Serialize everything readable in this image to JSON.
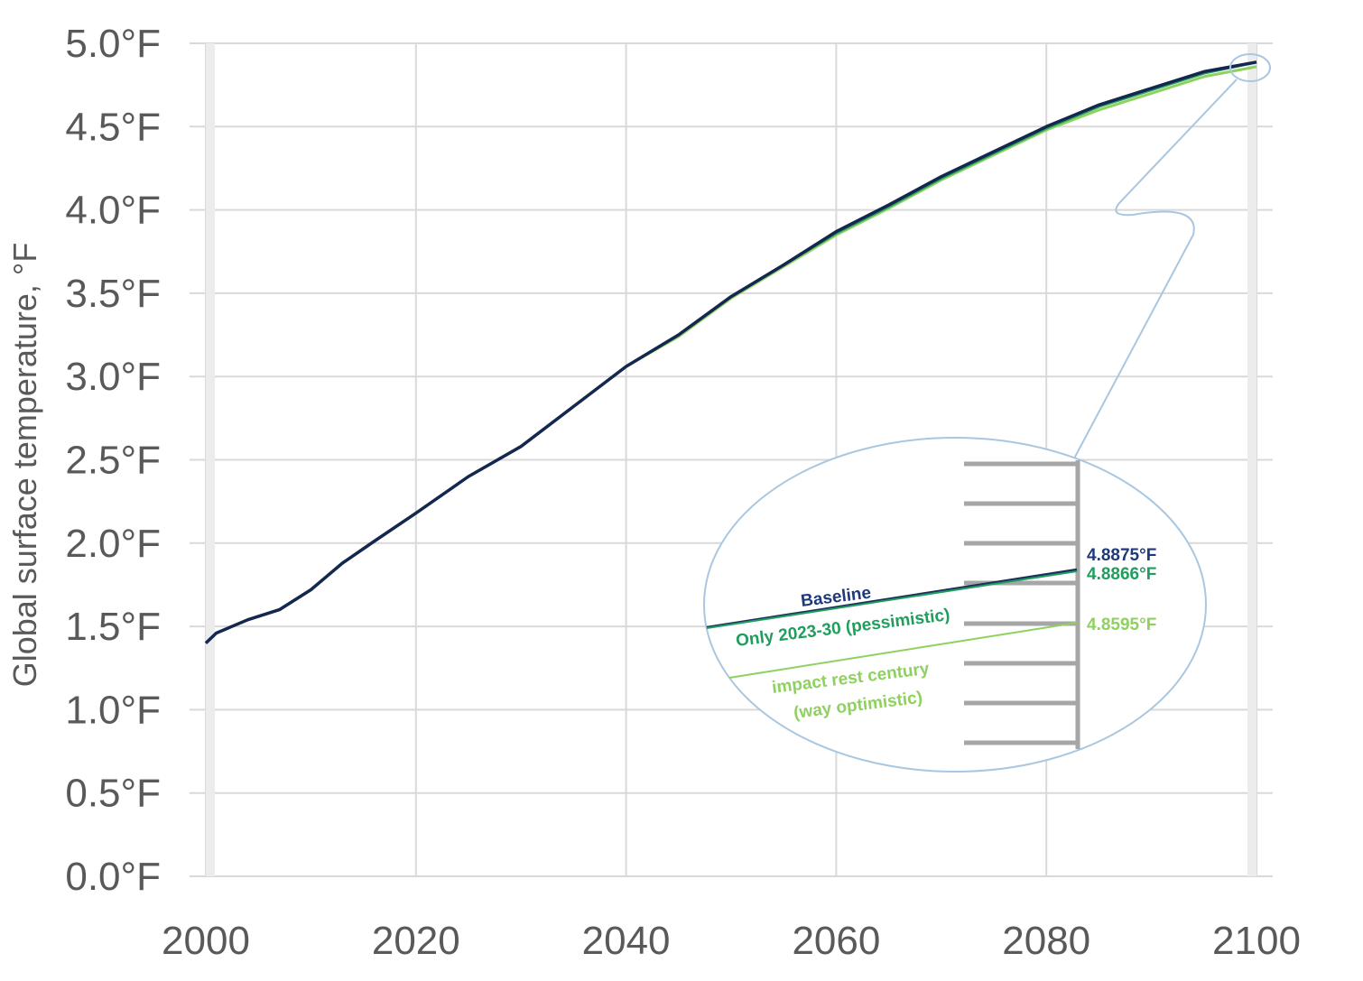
{
  "chart_data": {
    "type": "line",
    "title": "",
    "xlabel": "",
    "ylabel": "Global surface temperature, °F",
    "xlim": [
      2000,
      2100
    ],
    "ylim": [
      0.0,
      5.0
    ],
    "grid": true,
    "legend": "none",
    "x_ticks": [
      "2000",
      "2020",
      "2040",
      "2060",
      "2080",
      "2100"
    ],
    "y_ticks": [
      "0.0°F",
      "0.5°F",
      "1.0°F",
      "1.5°F",
      "2.0°F",
      "2.5°F",
      "3.0°F",
      "3.5°F",
      "4.0°F",
      "4.5°F",
      "5.0°F"
    ],
    "x": [
      2000,
      2001,
      2004,
      2007,
      2010,
      2013,
      2016,
      2020,
      2025,
      2030,
      2035,
      2040,
      2045,
      2050,
      2055,
      2060,
      2065,
      2070,
      2075,
      2080,
      2085,
      2090,
      2095,
      2100
    ],
    "series": [
      {
        "color": "#14274e",
        "values": [
          1.4,
          1.46,
          1.54,
          1.6,
          1.72,
          1.88,
          2.01,
          2.18,
          2.4,
          2.58,
          2.82,
          3.06,
          3.25,
          3.48,
          3.67,
          3.87,
          4.03,
          4.2,
          4.35,
          4.5,
          4.63,
          4.73,
          4.83,
          4.8875
        ]
      },
      {
        "color": "#1f9e5e",
        "values": [
          1.4,
          1.46,
          1.54,
          1.6,
          1.72,
          1.88,
          2.01,
          2.18,
          2.4,
          2.58,
          2.82,
          3.06,
          3.25,
          3.48,
          3.67,
          3.86,
          4.02,
          4.19,
          4.34,
          4.49,
          4.62,
          4.72,
          4.82,
          4.8866
        ]
      },
      {
        "color": "#8fd15f",
        "values": [
          1.4,
          1.46,
          1.54,
          1.6,
          1.72,
          1.88,
          2.01,
          2.18,
          2.4,
          2.58,
          2.82,
          3.06,
          3.24,
          3.47,
          3.66,
          3.85,
          4.01,
          4.18,
          4.33,
          4.48,
          4.6,
          4.7,
          4.8,
          4.8595
        ]
      }
    ],
    "inset": {
      "series_labels": [
        {
          "text": "Baseline",
          "color": "#1f3a7a"
        },
        {
          "text": "Only 2023-30 (pessimistic)",
          "color": "#1f9e5e"
        },
        {
          "text": "impact rest century",
          "color": "#8fd15f"
        },
        {
          "text": "(way optimistic)",
          "color": "#8fd15f"
        }
      ],
      "end_values": [
        {
          "text": "4.8875°F",
          "color": "#1f3a7a"
        },
        {
          "text": "4.8866°F",
          "color": "#1f9e5e"
        },
        {
          "text": "4.8595°F",
          "color": "#8fd15f"
        }
      ]
    }
  }
}
